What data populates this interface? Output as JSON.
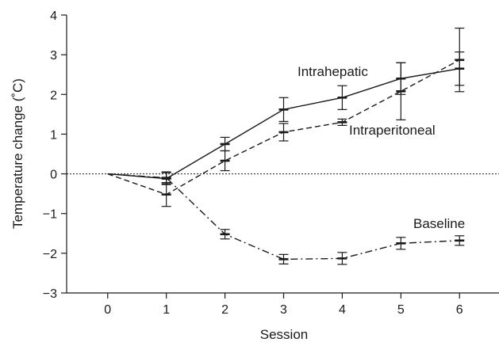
{
  "chart_data": {
    "type": "line",
    "xlabel": "Session",
    "ylabel": "Temperature change (˚C)",
    "xlim": [
      -0.7,
      6.7
    ],
    "ylim": [
      -3,
      4
    ],
    "xticks": [
      0,
      1,
      2,
      3,
      4,
      5,
      6
    ],
    "yticks": [
      -3,
      -2,
      -1,
      0,
      1,
      2,
      3,
      4
    ],
    "x": [
      0,
      1,
      2,
      3,
      4,
      5,
      6
    ],
    "reference_line": {
      "y": 0,
      "style": "dotted"
    },
    "grid": false,
    "series": [
      {
        "name": "Intrahepatic",
        "line_style": "solid",
        "values": [
          0,
          -0.12,
          0.75,
          1.62,
          1.92,
          2.4,
          2.65
        ],
        "error": [
          0,
          0.15,
          0.17,
          0.3,
          0.3,
          0.4,
          0.42
        ]
      },
      {
        "name": "Intraperitoneal",
        "line_style": "dashed",
        "values": [
          0,
          -0.52,
          0.33,
          1.05,
          1.3,
          2.08,
          2.87
        ],
        "error": [
          0,
          0.3,
          0.25,
          0.22,
          0.08,
          0.72,
          0.8
        ]
      },
      {
        "name": "Baseline",
        "line_style": "dash-dot",
        "values": [
          0,
          -0.1,
          -1.52,
          -2.15,
          -2.13,
          -1.75,
          -1.68
        ],
        "error": [
          0,
          0.15,
          0.12,
          0.12,
          0.15,
          0.15,
          0.12
        ]
      }
    ]
  }
}
